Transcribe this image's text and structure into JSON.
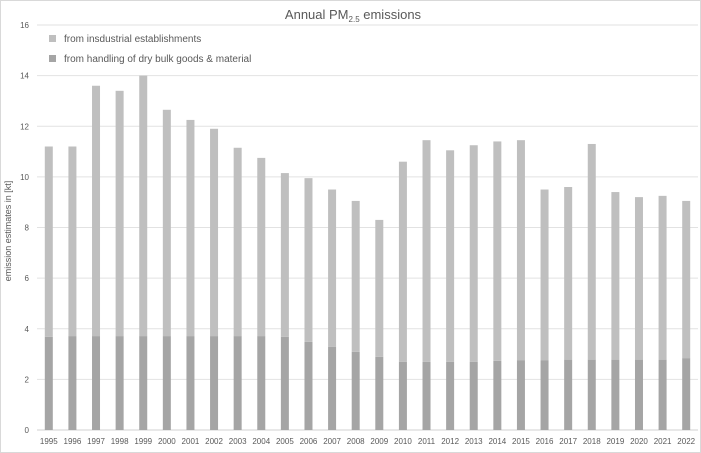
{
  "chart_data": {
    "type": "bar",
    "stacked": true,
    "title": {
      "main": "Annual PM",
      "subscript": "2.5",
      "suffix": " emissions"
    },
    "xlabel": "",
    "ylabel": "emission estimates in [kt]",
    "ylim": [
      0,
      16
    ],
    "yticks": [
      "0",
      "2",
      "4",
      "6",
      "8",
      "10",
      "12",
      "14",
      "16"
    ],
    "grid": true,
    "legend_position": "top-left",
    "categories": [
      "1995",
      "1996",
      "1997",
      "1998",
      "1999",
      "2000",
      "2001",
      "2002",
      "2003",
      "2004",
      "2005",
      "2006",
      "2007",
      "2008",
      "2009",
      "2010",
      "2011",
      "2012",
      "2013",
      "2014",
      "2015",
      "2016",
      "2017",
      "2018",
      "2019",
      "2020",
      "2021",
      "2022"
    ],
    "series": [
      {
        "name": "from handling of dry bulk goods & material",
        "color": "#a5a5a5",
        "values": [
          3.68,
          3.71,
          3.71,
          3.71,
          3.71,
          3.71,
          3.71,
          3.71,
          3.71,
          3.71,
          3.68,
          3.48,
          3.29,
          3.09,
          2.89,
          2.69,
          2.69,
          2.69,
          2.69,
          2.73,
          2.76,
          2.76,
          2.78,
          2.78,
          2.78,
          2.78,
          2.78,
          2.84
        ]
      },
      {
        "name": "from insdustrial establishments",
        "color": "#bfbfbf",
        "values": [
          7.52,
          7.49,
          9.89,
          9.69,
          10.29,
          8.94,
          8.54,
          8.19,
          7.44,
          7.04,
          6.47,
          6.47,
          6.21,
          5.96,
          5.41,
          7.91,
          8.76,
          8.36,
          8.56,
          8.67,
          8.69,
          6.74,
          6.82,
          8.52,
          6.62,
          6.42,
          6.47,
          6.21
        ]
      }
    ]
  }
}
